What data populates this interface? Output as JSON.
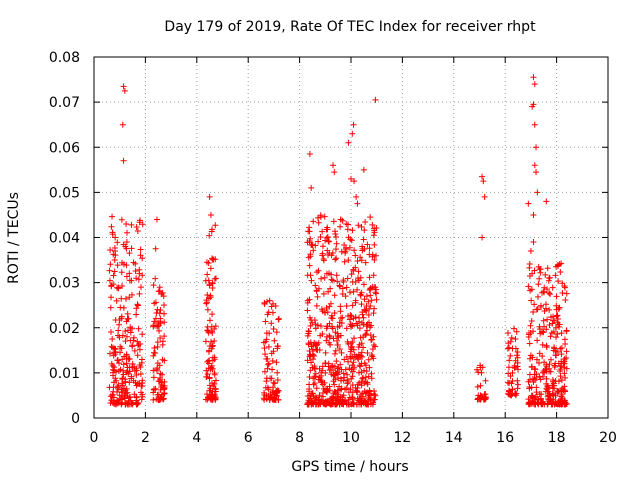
{
  "chart_data": {
    "type": "scatter",
    "title": "Day 179 of 2019, Rate Of TEC Index for receiver rhpt",
    "xlabel": "GPS time / hours",
    "ylabel": "ROTI / TECUs",
    "xlim": [
      0,
      20
    ],
    "ylim": [
      0,
      0.08
    ],
    "xticks": [
      "0",
      "2",
      "4",
      "6",
      "8",
      "10",
      "12",
      "14",
      "16",
      "18",
      "20"
    ],
    "yticks": [
      "0",
      "0.01",
      "0.02",
      "0.03",
      "0.04",
      "0.05",
      "0.06",
      "0.07",
      "0.08"
    ],
    "grid": true,
    "marker": "+",
    "marker_color": "#ff0000",
    "series": [
      {
        "name": "ROTI",
        "clusters": [
          {
            "x_start": 0.6,
            "x_end": 1.9,
            "y_low": 0.003,
            "y_high": 0.045,
            "density": 260
          },
          {
            "x_start": 2.3,
            "x_end": 2.75,
            "y_low": 0.004,
            "y_high": 0.031,
            "density": 90
          },
          {
            "x_start": 4.35,
            "x_end": 4.75,
            "y_low": 0.004,
            "y_high": 0.045,
            "density": 110
          },
          {
            "x_start": 6.6,
            "x_end": 7.2,
            "y_low": 0.004,
            "y_high": 0.027,
            "density": 90
          },
          {
            "x_start": 8.3,
            "x_end": 11.0,
            "y_low": 0.003,
            "y_high": 0.045,
            "density": 650
          },
          {
            "x_start": 14.9,
            "x_end": 15.3,
            "y_low": 0.004,
            "y_high": 0.012,
            "density": 30
          },
          {
            "x_start": 16.1,
            "x_end": 16.5,
            "y_low": 0.005,
            "y_high": 0.021,
            "density": 50
          },
          {
            "x_start": 16.9,
            "x_end": 18.4,
            "y_low": 0.003,
            "y_high": 0.035,
            "density": 320
          }
        ],
        "outliers": [
          {
            "x": 1.15,
            "y": 0.0735
          },
          {
            "x": 1.2,
            "y": 0.0725
          },
          {
            "x": 1.12,
            "y": 0.065
          },
          {
            "x": 1.15,
            "y": 0.057
          },
          {
            "x": 1.25,
            "y": 0.043
          },
          {
            "x": 1.28,
            "y": 0.039
          },
          {
            "x": 2.45,
            "y": 0.044
          },
          {
            "x": 2.4,
            "y": 0.0375
          },
          {
            "x": 4.5,
            "y": 0.049
          },
          {
            "x": 4.55,
            "y": 0.045
          },
          {
            "x": 8.4,
            "y": 0.0585
          },
          {
            "x": 8.45,
            "y": 0.051
          },
          {
            "x": 9.3,
            "y": 0.056
          },
          {
            "x": 9.35,
            "y": 0.0545
          },
          {
            "x": 9.9,
            "y": 0.061
          },
          {
            "x": 10.1,
            "y": 0.065
          },
          {
            "x": 10.05,
            "y": 0.063
          },
          {
            "x": 10.0,
            "y": 0.053
          },
          {
            "x": 10.12,
            "y": 0.0525
          },
          {
            "x": 10.2,
            "y": 0.049
          },
          {
            "x": 10.25,
            "y": 0.0475
          },
          {
            "x": 10.5,
            "y": 0.055
          },
          {
            "x": 10.95,
            "y": 0.0705
          },
          {
            "x": 10.9,
            "y": 0.042
          },
          {
            "x": 10.9,
            "y": 0.029
          },
          {
            "x": 15.1,
            "y": 0.0535
          },
          {
            "x": 15.15,
            "y": 0.0525
          },
          {
            "x": 15.2,
            "y": 0.049
          },
          {
            "x": 15.1,
            "y": 0.04
          },
          {
            "x": 17.1,
            "y": 0.0755
          },
          {
            "x": 17.15,
            "y": 0.074
          },
          {
            "x": 17.1,
            "y": 0.0695
          },
          {
            "x": 17.05,
            "y": 0.069
          },
          {
            "x": 17.15,
            "y": 0.065
          },
          {
            "x": 17.2,
            "y": 0.06
          },
          {
            "x": 17.15,
            "y": 0.056
          },
          {
            "x": 17.2,
            "y": 0.0545
          },
          {
            "x": 17.25,
            "y": 0.05
          },
          {
            "x": 16.9,
            "y": 0.0475
          },
          {
            "x": 17.6,
            "y": 0.048
          },
          {
            "x": 17.1,
            "y": 0.045
          },
          {
            "x": 17.1,
            "y": 0.039
          },
          {
            "x": 17.0,
            "y": 0.037
          }
        ]
      }
    ]
  }
}
